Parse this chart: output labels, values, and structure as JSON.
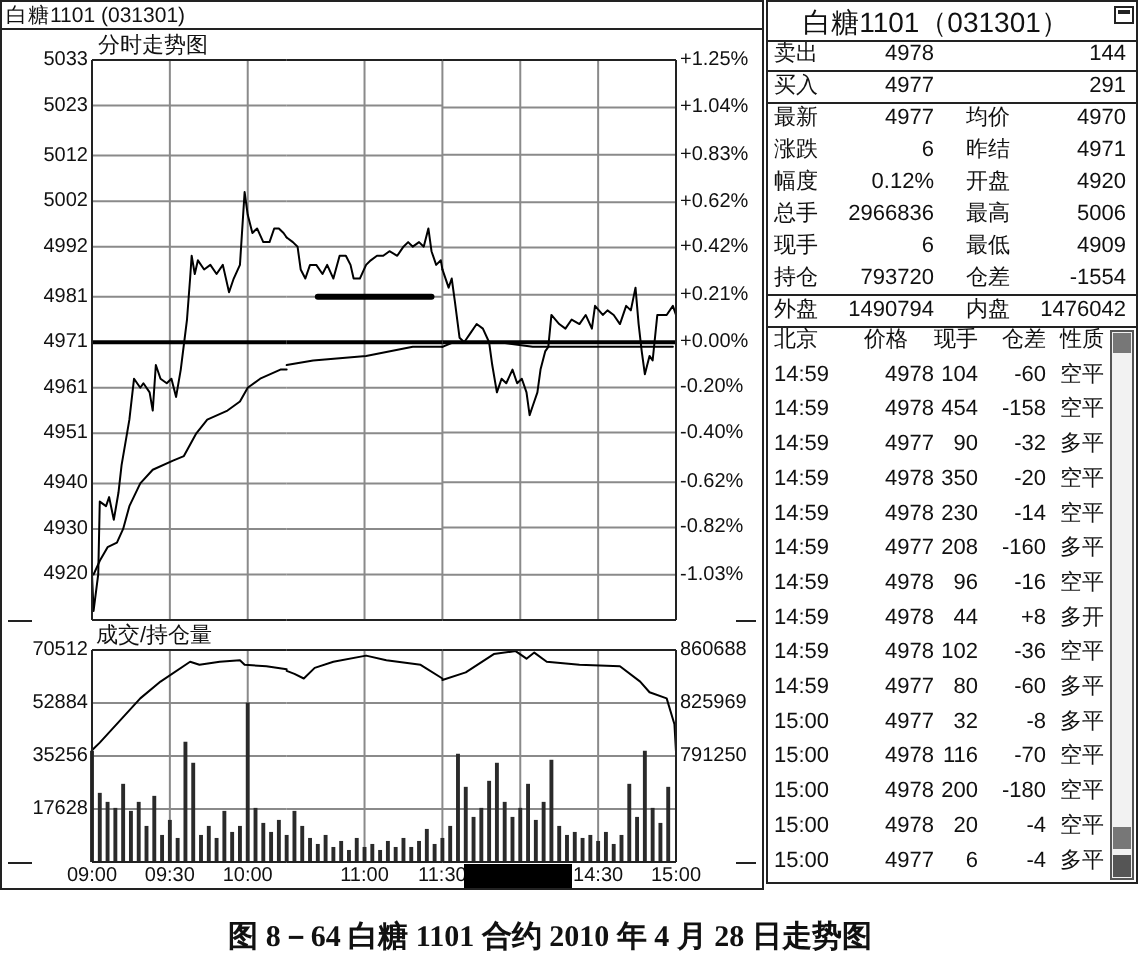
{
  "chart_data": [
    {
      "type": "line",
      "title": "白糖1101 (031301)",
      "subtitle": "分时走势图",
      "xlim": [
        9,
        10.25
      ],
      "xticks": [
        9,
        9.5,
        10
      ],
      "tick_labels": "y",
      "ylim": [
        4910,
        5033
      ],
      "yticks": [
        5033,
        5023,
        5012,
        5002,
        4992,
        4981,
        4971,
        4961,
        4951,
        4940,
        4930,
        4920
      ],
      "grid": true,
      "ref_lines": [
        {
          "axis": "y",
          "value": 4971,
          "color": "#000000"
        }
      ],
      "series": [
        {
          "type": "line",
          "color": "#000000",
          "x": [
            9.0,
            9.01,
            9.04,
            9.05,
            9.09,
            9.11,
            9.14,
            9.17,
            9.19,
            9.22,
            9.24,
            9.27,
            9.31,
            9.33,
            9.37,
            9.39,
            9.41,
            9.44,
            9.48,
            9.51,
            9.54,
            9.57,
            9.61,
            9.63,
            9.64,
            9.66,
            9.68,
            9.72,
            9.76,
            9.8,
            9.84,
            9.88,
            9.91,
            9.95,
            9.98,
            10.0,
            10.03,
            10.06,
            10.1,
            10.14,
            10.17,
            10.2,
            10.23,
            10.25
          ],
          "values": [
            4920,
            4912,
            4920,
            4936,
            4935,
            4937,
            4932,
            4938,
            4944,
            4950,
            4954,
            4963,
            4961,
            4962,
            4960,
            4956,
            4966,
            4963,
            4962,
            4963,
            4959,
            4965,
            4976,
            4985,
            4990,
            4986,
            4989,
            4987,
            4988,
            4986,
            4988,
            4982,
            4985,
            4988,
            5004,
            4999,
            4995,
            4996,
            4993,
            4993,
            4996,
            4996,
            4995,
            4994
          ]
        },
        {
          "type": "line",
          "color": "#000000",
          "x": [
            9.01,
            9.05,
            9.1,
            9.16,
            9.2,
            9.24,
            9.31,
            9.39,
            9.52,
            9.59,
            9.67,
            9.74,
            9.87,
            9.95,
            10.0,
            10.08,
            10.21,
            10.25
          ],
          "values": [
            4920,
            4923,
            4926,
            4927,
            4930,
            4935,
            4940,
            4943,
            4945,
            4946,
            4951,
            4954,
            4956,
            4958,
            4961,
            4963,
            4965,
            4965
          ]
        }
      ]
    },
    {
      "type": "line",
      "xlim": [
        10.5,
        11.5
      ],
      "xticks": [
        11,
        11.5
      ],
      "tick_labels": false,
      "ylim": [
        4910,
        5033
      ],
      "yticks": [
        5033,
        5023,
        5012,
        5002,
        4992,
        4981,
        4971,
        4961,
        4951,
        4940,
        4930,
        4920
      ],
      "grid": true,
      "ref_lines": [
        {
          "axis": "y",
          "value": 4971,
          "color": "#000000"
        }
      ],
      "series": [
        {
          "type": "line",
          "color": "#000000",
          "x": [
            10.5,
            10.54,
            10.57,
            10.59,
            10.62,
            10.65,
            10.69,
            10.73,
            10.76,
            10.8,
            10.84,
            10.88,
            10.91,
            10.93,
            10.97,
            11.01,
            11.04,
            11.08,
            11.12,
            11.16,
            11.21,
            11.25,
            11.28,
            11.31,
            11.35,
            11.38,
            11.41,
            11.43,
            11.46,
            11.49,
            11.5
          ],
          "values": [
            4994,
            4993,
            4992,
            4987,
            4985,
            4988,
            4988,
            4986,
            4988,
            4985,
            4990,
            4990,
            4988,
            4985,
            4985,
            4988,
            4989,
            4990,
            4990,
            4991,
            4990,
            4992,
            4993,
            4992,
            4993,
            4992,
            4996,
            4991,
            4988,
            4989,
            4987
          ]
        },
        {
          "type": "line",
          "color": "#000000",
          "x": [
            10.5,
            10.67,
            11.01,
            11.31,
            11.5
          ],
          "values": [
            4966,
            4967,
            4968,
            4970,
            4970
          ]
        },
        {
          "type": "line",
          "color": "#000000",
          "x": [
            10.7,
            11.43
          ],
          "values": [
            4981,
            4981
          ]
        }
      ]
    },
    {
      "type": "line",
      "xlim": [
        13.5,
        15
      ],
      "xticks": [
        14,
        14.5,
        15
      ],
      "tick_labels": "y",
      "ylim": [
        4910,
        5033
      ],
      "y2lim": [
        -1.23,
        1.25
      ],
      "y2ticks": [
        {
          "value": 1.25,
          "label": "+1.25%"
        },
        {
          "value": 1.04,
          "label": "+1.04%"
        },
        {
          "value": 0.83,
          "label": "+0.83%"
        },
        {
          "value": 0.62,
          "label": "+0.62%"
        },
        {
          "value": 0.42,
          "label": "+0.42%"
        },
        {
          "value": 0.21,
          "label": "+0.21%"
        },
        {
          "value": 0,
          "label": "+0.00%"
        },
        {
          "value": -0.2,
          "label": "-0.20%"
        },
        {
          "value": -0.4,
          "label": "-0.40%"
        },
        {
          "value": -0.62,
          "label": "-0.62%"
        },
        {
          "value": -0.82,
          "label": "-0.82%"
        },
        {
          "value": -1.03,
          "label": "-1.03%"
        }
      ],
      "grid": true,
      "ref_lines": [
        {
          "axis": "y",
          "value": 4971,
          "color": "#000000"
        }
      ],
      "series": [
        {
          "type": "line",
          "color": "#000000",
          "x": [
            13.5,
            13.54,
            13.56,
            13.58,
            13.61,
            13.64,
            13.68,
            13.72,
            13.76,
            13.8,
            13.82,
            13.85,
            13.88,
            13.91,
            13.95,
            13.98,
            14.01,
            14.04,
            14.06,
            14.08,
            14.11,
            14.13,
            14.16,
            14.18,
            14.2,
            14.25,
            14.29,
            14.33,
            14.38,
            14.42,
            14.46,
            14.48,
            14.53,
            14.56,
            14.6,
            14.64,
            14.68,
            14.71,
            14.74,
            14.76,
            14.78,
            14.8,
            14.83,
            14.85,
            14.88,
            14.91,
            14.94,
            14.98,
            15.0
          ],
          "values": [
            4987,
            4983,
            4985,
            4980,
            4972,
            4971,
            4973,
            4975,
            4974,
            4971,
            4966,
            4960,
            4963,
            4962,
            4965,
            4962,
            4963,
            4960,
            4955,
            4957,
            4960,
            4965,
            4969,
            4970,
            4977,
            4975,
            4974,
            4976,
            4975,
            4977,
            4974,
            4979,
            4977,
            4978,
            4977,
            4975,
            4979,
            4978,
            4983,
            4975,
            4969,
            4964,
            4968,
            4967,
            4977,
            4977,
            4977,
            4979,
            4977
          ]
        },
        {
          "type": "line",
          "color": "#000000",
          "x": [
            13.5,
            13.57,
            13.87,
            14.08,
            14.3,
            14.98
          ],
          "values": [
            4970,
            4971,
            4971,
            4970,
            4970,
            4970
          ]
        }
      ]
    },
    {
      "type": "bar",
      "title": "成交/持仓量",
      "annotations": [
        "图 8－64  白糖 1101 合约 2010 年 4 月 28 日走势图"
      ],
      "xlim": [
        9,
        10.25
      ],
      "xticks": [
        {
          "value": 9,
          "label": "09:00"
        },
        {
          "value": 9.5,
          "label": "09:30"
        },
        {
          "value": 10,
          "label": "10:00"
        }
      ],
      "ylim": [
        0,
        70512
      ],
      "yticks": [
        17628,
        35256,
        52884,
        70512
      ],
      "y2lim": [
        721812,
        860688
      ],
      "grid": true,
      "series": [
        {
          "type": "bar",
          "color": "#2a2a2a",
          "x": [
            9.0,
            9.05,
            9.1,
            9.15,
            9.2,
            9.25,
            9.3,
            9.35,
            9.4,
            9.45,
            9.5,
            9.55,
            9.6,
            9.65,
            9.7,
            9.75,
            9.8,
            9.85,
            9.9,
            9.95,
            10.0,
            10.05,
            10.1,
            10.15,
            10.2
          ],
          "values": [
            37000,
            23000,
            20000,
            18000,
            26000,
            17000,
            20000,
            12000,
            22000,
            9000,
            14000,
            8000,
            40000,
            33000,
            9000,
            12000,
            8000,
            17000,
            10000,
            12000,
            53000,
            18000,
            13000,
            10000,
            14000
          ]
        },
        {
          "type": "line",
          "axis": "y2",
          "color": "#000000",
          "x": [
            9.0,
            9.05,
            9.31,
            9.44,
            9.63,
            9.69,
            9.82,
            9.95,
            9.98,
            10.12,
            10.25
          ],
          "values": [
            795000,
            800000,
            829000,
            840000,
            853000,
            851000,
            853000,
            854000,
            851000,
            850000,
            848000
          ]
        }
      ]
    },
    {
      "type": "bar",
      "xlim": [
        10.5,
        11.5
      ],
      "xticks": [
        {
          "value": 11,
          "label": "11:00"
        },
        {
          "value": 11.5,
          "label": "11:30"
        }
      ],
      "tick_labels": "x",
      "ylim": [
        0,
        70512
      ],
      "yticks": [
        17628,
        35256,
        52884,
        70512
      ],
      "y2lim": [
        721812,
        860688
      ],
      "grid": true,
      "series": [
        {
          "type": "bar",
          "color": "#2a2a2a",
          "x": [
            10.5,
            10.55,
            10.6,
            10.65,
            10.7,
            10.75,
            10.8,
            10.85,
            10.9,
            10.95,
            11.0,
            11.05,
            11.1,
            11.15,
            11.2,
            11.25,
            11.3,
            11.35,
            11.4,
            11.45
          ],
          "values": [
            9000,
            17000,
            12000,
            8000,
            6000,
            9000,
            5000,
            7000,
            4000,
            8000,
            5000,
            6000,
            4000,
            7000,
            5000,
            8000,
            5000,
            7000,
            11000,
            6000
          ]
        },
        {
          "type": "line",
          "axis": "y2",
          "color": "#000000",
          "x": [
            10.5,
            10.55,
            10.61,
            10.68,
            10.8,
            11.01,
            11.14,
            11.36,
            11.5
          ],
          "values": [
            847000,
            845000,
            842000,
            849000,
            853000,
            857000,
            854000,
            851000,
            842000
          ]
        }
      ]
    },
    {
      "type": "bar",
      "xlim": [
        13.5,
        15
      ],
      "xticks": [
        {
          "value": 14,
          "label": null
        },
        {
          "value": 14.5,
          "label": "14:30"
        },
        {
          "value": 15,
          "label": "15:00"
        }
      ],
      "ylim": [
        0,
        70512
      ],
      "y2lim": [
        721812,
        860688
      ],
      "y2ticks": [
        {
          "value": 756531,
          "label": null
        },
        791250,
        825969,
        860688
      ],
      "grid": true,
      "series": [
        {
          "type": "bar",
          "color": "#2a2a2a",
          "x": [
            13.5,
            13.55,
            13.6,
            13.65,
            13.7,
            13.75,
            13.8,
            13.85,
            13.9,
            13.95,
            14.0,
            14.05,
            14.1,
            14.15,
            14.2,
            14.25,
            14.3,
            14.35,
            14.4,
            14.45,
            14.5,
            14.55,
            14.6,
            14.65,
            14.7,
            14.75,
            14.8,
            14.85,
            14.9,
            14.95
          ],
          "values": [
            8000,
            12000,
            36000,
            25000,
            15000,
            18000,
            27000,
            33000,
            20000,
            15000,
            18000,
            26000,
            14000,
            20000,
            34000,
            12000,
            9000,
            10000,
            8000,
            9000,
            7000,
            10000,
            6000,
            9000,
            26000,
            15000,
            37000,
            18000,
            13000,
            25000
          ]
        },
        {
          "type": "line",
          "axis": "y2",
          "color": "#000000",
          "x": [
            13.5,
            13.65,
            13.83,
            13.97,
            14.04,
            14.09,
            14.17,
            14.38,
            14.64,
            14.77,
            14.83,
            14.94,
            14.99,
            15.0
          ],
          "values": [
            841000,
            846000,
            858000,
            860000,
            855000,
            859000,
            853000,
            851000,
            850000,
            840000,
            833000,
            829000,
            812000,
            794000
          ]
        }
      ]
    },
    {
      "type": "other",
      "title": "白糖1101（031301）",
      "annotations": [
        "卖出 4978 144",
        "买入 4977 291",
        "最新 4977 均价 4970",
        "涨跌 6 昨结 4971",
        "幅度 0.12% 开盘 4920",
        "总手 2966836 最高 5006",
        "现手 6 最低 4909",
        "持仓 793720 仓差 -1554",
        "外盘 1490794 内盘 1476042",
        "北京 价格 现手 仓差 性质",
        "14:59 4978 104 -60 空平",
        "14:59 4978 454 -158 空平",
        "14:59 4977 90 -32 多平",
        "14:59 4978 350 -20 空平",
        "14:59 4978 230 -14 空平",
        "14:59 4977 208 -160 多平",
        "14:59 4978 96 -16 空平",
        "14:59 4978 44 +8 多开",
        "14:59 4978 102 -36 空平",
        "14:59 4977 80 -60 多平",
        "15:00 4977 32 -8 多平",
        "15:00 4978 116 -70 空平",
        "15:00 4978 200 -180 空平",
        "15:00 4978 20 -4 空平",
        "15:00 4977 6 -4 多平"
      ]
    }
  ]
}
